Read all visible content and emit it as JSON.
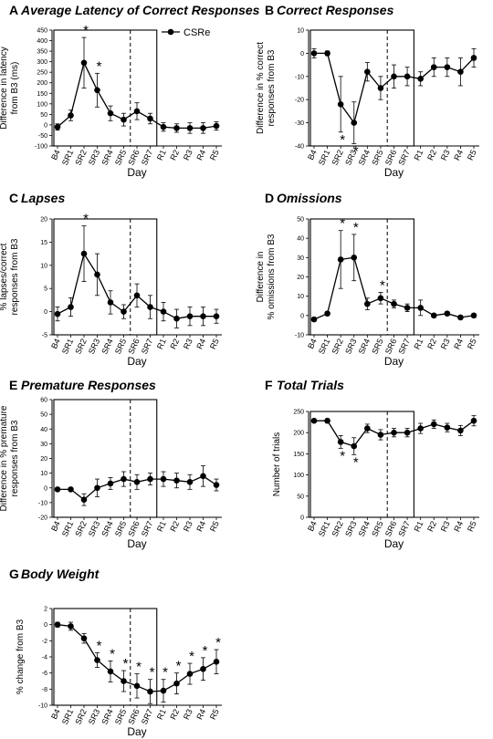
{
  "legend": {
    "label": "CSRe"
  },
  "chart_data": [
    {
      "letter": "A",
      "title": "Average Latency of Correct Responses",
      "type": "line",
      "ylabel": [
        "Difference in latency",
        "from B3 (ms)"
      ],
      "xlabel": "Day",
      "ylim": [
        -100,
        450
      ],
      "yticks": [
        -100,
        -50,
        0,
        50,
        100,
        150,
        200,
        250,
        300,
        350,
        400,
        450
      ],
      "categories": [
        "B4",
        "SR1",
        "SR2",
        "SR3",
        "SR4",
        "SR5",
        "SR6",
        "SR7",
        "R1",
        "R2",
        "R3",
        "R4",
        "R5"
      ],
      "values": [
        -10,
        45,
        295,
        165,
        55,
        25,
        65,
        30,
        -10,
        -15,
        -15,
        -15,
        -5
      ],
      "errors": [
        15,
        25,
        120,
        80,
        35,
        30,
        40,
        25,
        20,
        20,
        25,
        25,
        20
      ],
      "significant": [
        "SR2",
        "SR3"
      ]
    },
    {
      "letter": "B",
      "title": "Correct Responses",
      "type": "line",
      "ylabel": [
        "Difference in % correct",
        "responses from B3"
      ],
      "xlabel": "Day",
      "ylim": [
        -40,
        10
      ],
      "yticks": [
        -40,
        -30,
        -20,
        -10,
        0,
        10
      ],
      "categories": [
        "B4",
        "SR1",
        "SR2",
        "SR3",
        "SR4",
        "SR5",
        "SR6",
        "SR7",
        "R1",
        "R2",
        "R3",
        "R4",
        "R5"
      ],
      "values": [
        0,
        0,
        -22,
        -30,
        -8,
        -15,
        -10,
        -10,
        -11,
        -6,
        -6,
        -8,
        -2
      ],
      "errors": [
        2,
        1,
        12,
        9,
        4,
        5,
        5,
        4,
        3,
        4,
        4,
        6,
        4
      ],
      "significant": [
        "SR2",
        "SR3"
      ]
    },
    {
      "letter": "C",
      "title": "Lapses",
      "type": "line",
      "ylabel": [
        "Difference in",
        "% lapses/correct",
        "responses  from B3"
      ],
      "xlabel": "Day",
      "ylim": [
        -5,
        20
      ],
      "yticks": [
        -5,
        0,
        5,
        10,
        15,
        20
      ],
      "categories": [
        "B4",
        "SR1",
        "SR2",
        "SR3",
        "SR4",
        "SR5",
        "SR6",
        "SR7",
        "R1",
        "R2",
        "R3",
        "R4",
        "R5"
      ],
      "values": [
        -0.5,
        1,
        12.5,
        8,
        2,
        0,
        3.5,
        1,
        0,
        -1.5,
        -1,
        -1,
        -1
      ],
      "errors": [
        1.5,
        2,
        6,
        4.5,
        2.5,
        1.5,
        2.5,
        2.5,
        2,
        2,
        2,
        2,
        1.5
      ],
      "significant": [
        "SR2"
      ]
    },
    {
      "letter": "D",
      "title": "Omissions",
      "type": "line",
      "ylabel": [
        "Difference in",
        "% omissions from B3"
      ],
      "xlabel": "Day",
      "ylim": [
        -10,
        50
      ],
      "yticks": [
        -10,
        0,
        10,
        20,
        30,
        40,
        50
      ],
      "categories": [
        "B4",
        "SR1",
        "SR2",
        "SR3",
        "SR4",
        "SR5",
        "SR6",
        "SR7",
        "R1",
        "R2",
        "R3",
        "R4",
        "R5"
      ],
      "values": [
        -2,
        1,
        29,
        30,
        6,
        9,
        6,
        4,
        4,
        0,
        1,
        -1,
        0
      ],
      "errors": [
        1,
        1,
        15,
        12,
        3,
        3,
        2,
        2,
        4,
        1,
        1,
        1,
        1
      ],
      "significant": [
        "SR2",
        "SR3",
        "SR5"
      ]
    },
    {
      "letter": "E",
      "title": "Premature Responses",
      "type": "line",
      "ylabel": [
        "Difference in % premature",
        "responses from B3"
      ],
      "xlabel": "Day",
      "ylim": [
        -20,
        60
      ],
      "yticks": [
        -20,
        -10,
        0,
        10,
        20,
        30,
        40,
        50,
        60
      ],
      "categories": [
        "B4",
        "SR1",
        "SR2",
        "SR3",
        "SR4",
        "SR5",
        "SR6",
        "SR7",
        "R1",
        "R2",
        "R3",
        "R4",
        "R5"
      ],
      "values": [
        -1,
        -1,
        -8,
        0,
        3,
        6,
        4,
        6,
        6,
        5,
        4,
        8,
        2
      ],
      "errors": [
        1,
        1,
        4,
        6,
        4,
        5,
        5,
        4,
        5,
        5,
        5,
        7,
        4
      ],
      "significant": []
    },
    {
      "letter": "F",
      "title": "Total Trials",
      "type": "line",
      "ylabel": [
        "Number of trials"
      ],
      "xlabel": "Day",
      "ylim": [
        0,
        250
      ],
      "yticks": [
        0,
        50,
        100,
        150,
        200,
        250
      ],
      "categories": [
        "B4",
        "SR1",
        "SR2",
        "SR3",
        "SR4",
        "SR5",
        "SR6",
        "SR7",
        "R1",
        "R2",
        "R3",
        "R4",
        "R5"
      ],
      "values": [
        228,
        228,
        178,
        168,
        210,
        195,
        200,
        200,
        210,
        220,
        212,
        205,
        228
      ],
      "errors": [
        4,
        5,
        15,
        20,
        10,
        12,
        10,
        10,
        12,
        10,
        10,
        12,
        12
      ],
      "significant": [
        "SR2",
        "SR3"
      ]
    },
    {
      "letter": "G",
      "title": "Body Weight",
      "type": "line",
      "ylabel": [
        "% change from B3"
      ],
      "xlabel": "Day",
      "ylim": [
        -10,
        2
      ],
      "yticks": [
        -10,
        -8,
        -6,
        -4,
        -2,
        0,
        2
      ],
      "categories": [
        "B4",
        "SR1",
        "SR2",
        "SR3",
        "SR4",
        "SR5",
        "SR6",
        "SR7",
        "R1",
        "R2",
        "R3",
        "R4",
        "R5"
      ],
      "values": [
        0,
        -0.2,
        -1.7,
        -4.4,
        -5.8,
        -7.0,
        -7.6,
        -8.3,
        -8.2,
        -7.3,
        -6.1,
        -5.5,
        -4.6
      ],
      "errors": [
        0.3,
        0.5,
        0.6,
        0.9,
        1.3,
        1.3,
        1.5,
        1.5,
        1.4,
        1.3,
        1.3,
        1.4,
        1.5
      ],
      "significant": [
        "SR3",
        "SR4",
        "SR5",
        "SR6",
        "SR7",
        "R1",
        "R2",
        "R3",
        "R4",
        "R5"
      ]
    }
  ]
}
